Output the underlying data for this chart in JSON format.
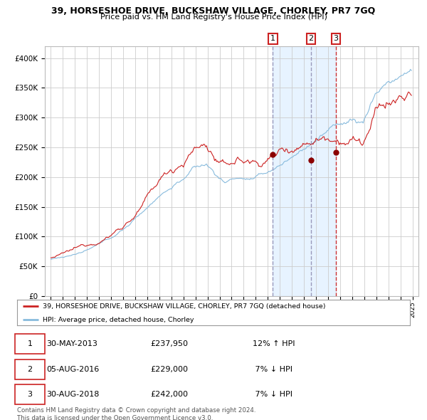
{
  "title": "39, HORSESHOE DRIVE, BUCKSHAW VILLAGE, CHORLEY, PR7 7GQ",
  "subtitle": "Price paid vs. HM Land Registry's House Price Index (HPI)",
  "legend_red": "39, HORSESHOE DRIVE, BUCKSHAW VILLAGE, CHORLEY, PR7 7GQ (detached house)",
  "legend_blue": "HPI: Average price, detached house, Chorley",
  "sale_dates_str": [
    "30-MAY-2013",
    "05-AUG-2016",
    "30-AUG-2018"
  ],
  "sale_prices": [
    237950,
    229000,
    242000
  ],
  "sale_hpi_pct": [
    "12% ↑ HPI",
    "7% ↓ HPI",
    "7% ↓ HPI"
  ],
  "sale_years": [
    2013.41,
    2016.59,
    2018.66
  ],
  "vertical_line_colors": [
    "#9999bb",
    "#9999bb",
    "#cc3333"
  ],
  "shaded_color": "#ddeeff",
  "footer": "Contains HM Land Registry data © Crown copyright and database right 2024.\nThis data is licensed under the Open Government Licence v3.0.",
  "ylim": [
    0,
    420000
  ],
  "yticks": [
    0,
    50000,
    100000,
    150000,
    200000,
    250000,
    300000,
    350000,
    400000
  ],
  "background_color": "#ffffff",
  "grid_color": "#cccccc",
  "red_line_color": "#cc2222",
  "blue_line_color": "#88bbdd"
}
